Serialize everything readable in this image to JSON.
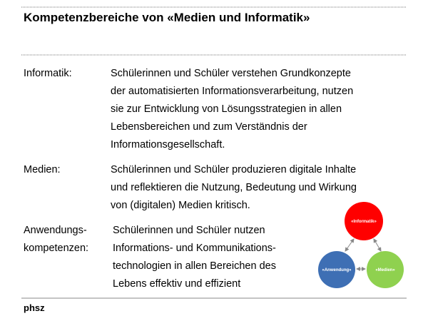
{
  "header": {
    "title": "Kompetenzbereiche von «Medien und Informatik»"
  },
  "sections": [
    {
      "label": [
        "Informatik:"
      ],
      "text": [
        "Schülerinnen und Schüler verstehen Grundkonzepte",
        "der automatisierten Informationsverarbeitung, nutzen",
        "sie zur Entwicklung von Lösungsstrategien in allen",
        "Lebensbereichen und zum Verständnis der",
        "Informationsgesellschaft."
      ]
    },
    {
      "label": [
        "Medien:"
      ],
      "text": [
        "Schülerinnen und Schüler produzieren digitale Inhalte",
        "und reflektieren die Nutzung, Bedeutung und Wirkung",
        "von (digitalen) Medien kritisch."
      ]
    },
    {
      "label": [
        "Anwendungs-",
        "kompetenzen:"
      ],
      "text": [
        "Schülerinnen und Schüler nutzen",
        "Informations- und Kommunikations-",
        "technologien in allen Bereichen des",
        "Lebens effektiv und effizient"
      ]
    }
  ],
  "diagram": {
    "nodes": [
      {
        "label": "«Informatik»"
      },
      {
        "label": "«Anwendung»"
      },
      {
        "label": "«Medien»"
      }
    ]
  },
  "footer": {
    "logo": "phsz"
  }
}
